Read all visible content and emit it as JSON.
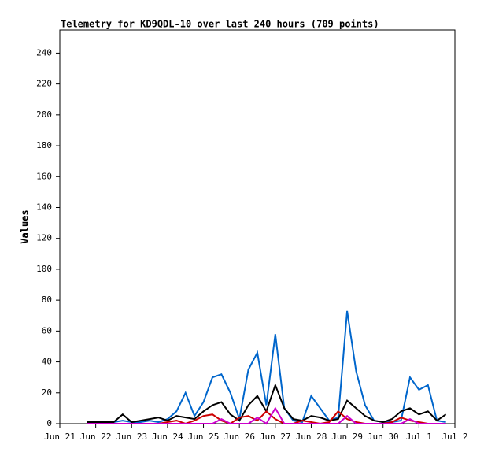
{
  "chart_data": {
    "type": "line",
    "title": "Telemetry for KD9QDL-10 over last 240 hours (709 points)",
    "y_label": "Values",
    "x": [
      0.75,
      1,
      1.25,
      1.5,
      1.75,
      2,
      2.25,
      2.5,
      2.75,
      3,
      3.25,
      3.5,
      3.75,
      4,
      4.25,
      4.5,
      4.75,
      5,
      5.25,
      5.5,
      5.75,
      6,
      6.25,
      6.5,
      6.75,
      7,
      7.25,
      7.5,
      7.75,
      8,
      8.25,
      8.5,
      8.75,
      9,
      9.25,
      9.5,
      9.75,
      10,
      10.25,
      10.5,
      10.75
    ],
    "series": [
      {
        "color": "#0066cc",
        "values": [
          1,
          1,
          1,
          1,
          2,
          1,
          1,
          2,
          1,
          3,
          8,
          20,
          5,
          14,
          30,
          32,
          20,
          3,
          35,
          46,
          12,
          58,
          10,
          2,
          1,
          18,
          10,
          2,
          4,
          73,
          34,
          12,
          2,
          1,
          1,
          2,
          30,
          22,
          25,
          2,
          1
        ]
      },
      {
        "color": "#000000",
        "values": [
          1,
          1,
          1,
          1,
          6,
          1,
          2,
          3,
          4,
          2,
          5,
          4,
          3,
          8,
          12,
          14,
          6,
          2,
          12,
          18,
          8,
          25,
          10,
          3,
          2,
          5,
          4,
          2,
          3,
          15,
          10,
          5,
          2,
          1,
          3,
          8,
          10,
          6,
          8,
          2,
          6
        ]
      },
      {
        "color": "#cc0000",
        "values": [
          0,
          0,
          0,
          0,
          0,
          0,
          0,
          0,
          0,
          1,
          2,
          0,
          2,
          5,
          6,
          2,
          0,
          4,
          5,
          2,
          8,
          3,
          0,
          0,
          2,
          1,
          0,
          1,
          8,
          3,
          1,
          0,
          0,
          0,
          1,
          4,
          2,
          1,
          0,
          0,
          0
        ]
      },
      {
        "color": "#cc00cc",
        "values": [
          0,
          0,
          0,
          0,
          0,
          0,
          0,
          0,
          0,
          0,
          0,
          0,
          0,
          0,
          0,
          3,
          0,
          0,
          0,
          4,
          0,
          10,
          0,
          0,
          0,
          0,
          0,
          0,
          0,
          5,
          0,
          0,
          0,
          0,
          0,
          0,
          3,
          0,
          0,
          0,
          0
        ]
      }
    ],
    "xlim": [
      0,
      11
    ],
    "xticks": [
      {
        "value": 0,
        "label": "Jun 21"
      },
      {
        "value": 1,
        "label": "Jun 22"
      },
      {
        "value": 2,
        "label": "Jun 23"
      },
      {
        "value": 3,
        "label": "Jun 24"
      },
      {
        "value": 4,
        "label": "Jun 25"
      },
      {
        "value": 5,
        "label": "Jun 26"
      },
      {
        "value": 6,
        "label": "Jun 27"
      },
      {
        "value": 7,
        "label": "Jun 28"
      },
      {
        "value": 8,
        "label": "Jun 29"
      },
      {
        "value": 9,
        "label": "Jun 30"
      },
      {
        "value": 10,
        "label": "Jul 1"
      },
      {
        "value": 11,
        "label": "Jul 2"
      }
    ],
    "ylim": [
      0,
      255
    ],
    "yticks": [
      0,
      20,
      40,
      60,
      80,
      100,
      120,
      140,
      160,
      180,
      200,
      220,
      240
    ]
  }
}
